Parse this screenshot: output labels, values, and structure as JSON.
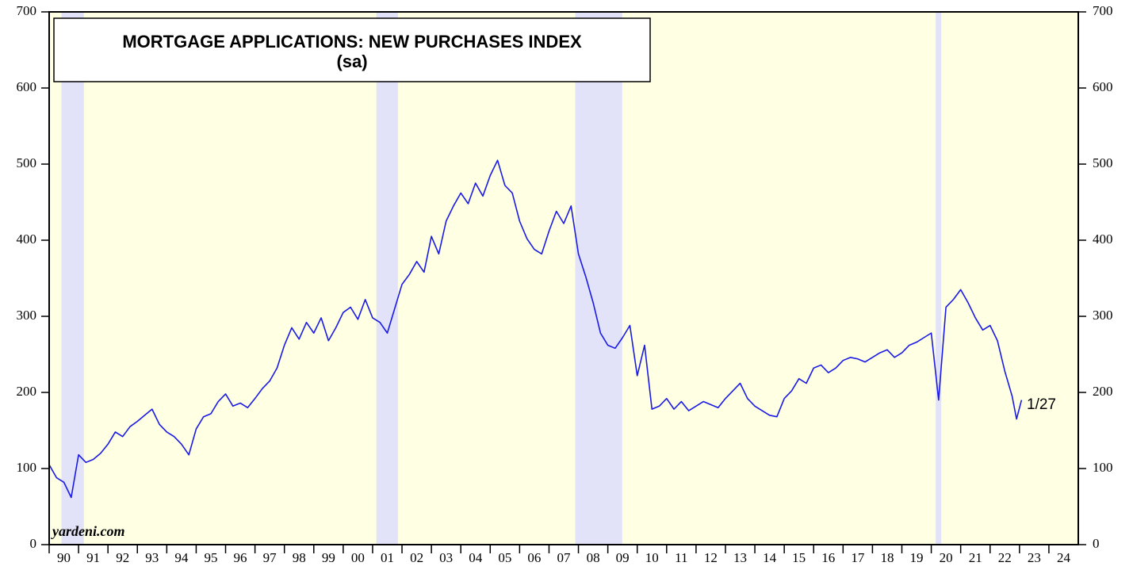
{
  "chart_data": {
    "type": "line",
    "title": "MORTGAGE APPLICATIONS: NEW PURCHASES INDEX",
    "subtitle": "(sa)",
    "annotations": [
      "yardeni.com",
      "1/27"
    ],
    "color": "#1a1ae6",
    "background_color": "#ffffe4",
    "recession_color": "#e2e2f8",
    "recessions": [
      [
        1990.42,
        1991.18
      ],
      [
        2001.13,
        2001.86
      ],
      [
        2007.89,
        2009.49
      ],
      [
        2020.15,
        2020.34
      ]
    ],
    "x": [
      1990,
      1990.25,
      1990.5,
      1990.75,
      1991,
      1991.25,
      1991.5,
      1991.75,
      1992,
      1992.25,
      1992.5,
      1992.75,
      1993,
      1993.25,
      1993.5,
      1993.75,
      1994,
      1994.25,
      1994.5,
      1994.75,
      1995,
      1995.25,
      1995.5,
      1995.75,
      1996,
      1996.25,
      1996.5,
      1996.75,
      1997,
      1997.25,
      1997.5,
      1997.75,
      1998,
      1998.25,
      1998.5,
      1998.75,
      1999,
      1999.25,
      1999.5,
      1999.75,
      2000,
      2000.25,
      2000.5,
      2000.75,
      2001,
      2001.25,
      2001.5,
      2001.75,
      2002,
      2002.25,
      2002.5,
      2002.75,
      2003,
      2003.25,
      2003.5,
      2003.75,
      2004,
      2004.25,
      2004.5,
      2004.75,
      2005,
      2005.25,
      2005.5,
      2005.75,
      2006,
      2006.25,
      2006.5,
      2006.75,
      2007,
      2007.25,
      2007.5,
      2007.75,
      2008,
      2008.25,
      2008.5,
      2008.75,
      2009,
      2009.25,
      2009.5,
      2009.75,
      2010,
      2010.25,
      2010.5,
      2010.75,
      2011,
      2011.25,
      2011.5,
      2011.75,
      2012,
      2012.25,
      2012.5,
      2012.75,
      2013,
      2013.25,
      2013.5,
      2013.75,
      2014,
      2014.25,
      2014.5,
      2014.75,
      2015,
      2015.25,
      2015.5,
      2015.75,
      2016,
      2016.25,
      2016.5,
      2016.75,
      2017,
      2017.25,
      2017.5,
      2017.75,
      2018,
      2018.25,
      2018.5,
      2018.75,
      2019,
      2019.25,
      2019.5,
      2019.75,
      2020,
      2020.25,
      2020.5,
      2020.75,
      2021,
      2021.25,
      2021.5,
      2021.75,
      2022,
      2022.25,
      2022.5,
      2022.75,
      2022.9,
      2023.07
    ],
    "values": [
      105,
      88,
      82,
      62,
      118,
      108,
      112,
      120,
      132,
      148,
      142,
      155,
      162,
      170,
      178,
      158,
      148,
      142,
      132,
      118,
      152,
      168,
      172,
      188,
      198,
      182,
      186,
      180,
      192,
      205,
      215,
      232,
      262,
      285,
      270,
      292,
      278,
      298,
      268,
      285,
      305,
      312,
      296,
      322,
      298,
      292,
      278,
      310,
      342,
      355,
      372,
      358,
      405,
      382,
      425,
      445,
      462,
      448,
      475,
      458,
      485,
      505,
      472,
      462,
      425,
      402,
      388,
      382,
      412,
      438,
      422,
      445,
      382,
      352,
      318,
      278,
      262,
      258,
      272,
      288,
      222,
      262,
      178,
      182,
      192,
      178,
      188,
      176,
      182,
      188,
      184,
      180,
      192,
      202,
      212,
      192,
      182,
      176,
      170,
      168,
      192,
      202,
      218,
      212,
      232,
      236,
      226,
      232,
      242,
      246,
      244,
      240,
      246,
      252,
      256,
      246,
      252,
      262,
      266,
      272,
      278,
      190,
      312,
      322,
      335,
      318,
      298,
      282,
      288,
      268,
      228,
      195,
      165,
      190
    ],
    "xlim": [
      1990,
      2025
    ],
    "xticks": [
      {
        "value": 1990,
        "label": "90"
      },
      {
        "value": 1991,
        "label": "91"
      },
      {
        "value": 1992,
        "label": "92"
      },
      {
        "value": 1993,
        "label": "93"
      },
      {
        "value": 1994,
        "label": "94"
      },
      {
        "value": 1995,
        "label": "95"
      },
      {
        "value": 1996,
        "label": "96"
      },
      {
        "value": 1997,
        "label": "97"
      },
      {
        "value": 1998,
        "label": "98"
      },
      {
        "value": 1999,
        "label": "99"
      },
      {
        "value": 2000,
        "label": "00"
      },
      {
        "value": 2001,
        "label": "01"
      },
      {
        "value": 2002,
        "label": "02"
      },
      {
        "value": 2003,
        "label": "03"
      },
      {
        "value": 2004,
        "label": "04"
      },
      {
        "value": 2005,
        "label": "05"
      },
      {
        "value": 2006,
        "label": "06"
      },
      {
        "value": 2007,
        "label": "07"
      },
      {
        "value": 2008,
        "label": "08"
      },
      {
        "value": 2009,
        "label": "09"
      },
      {
        "value": 2010,
        "label": "10"
      },
      {
        "value": 2011,
        "label": "11"
      },
      {
        "value": 2012,
        "label": "12"
      },
      {
        "value": 2013,
        "label": "13"
      },
      {
        "value": 2014,
        "label": "14"
      },
      {
        "value": 2015,
        "label": "15"
      },
      {
        "value": 2016,
        "label": "16"
      },
      {
        "value": 2017,
        "label": "17"
      },
      {
        "value": 2018,
        "label": "18"
      },
      {
        "value": 2019,
        "label": "19"
      },
      {
        "value": 2020,
        "label": "20"
      },
      {
        "value": 2021,
        "label": "21"
      },
      {
        "value": 2022,
        "label": "22"
      },
      {
        "value": 2023,
        "label": "23"
      },
      {
        "value": 2024,
        "label": "24"
      }
    ],
    "ylim": [
      0,
      700
    ],
    "yticks": [
      0,
      100,
      200,
      300,
      400,
      500,
      600,
      700
    ]
  }
}
